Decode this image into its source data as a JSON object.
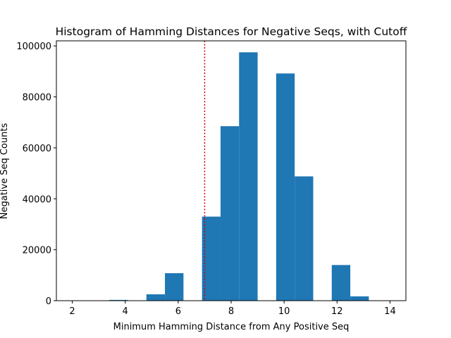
{
  "chart_data": {
    "type": "bar",
    "title": "Histogram of Hamming Distances for Negative Seqs, with Cutoff",
    "xlabel": "Minimum Hamming Distance from Any Positive Seq",
    "ylabel": "Negative Seq Counts",
    "xlim": [
      1.4,
      14.6
    ],
    "ylim": [
      0,
      102000
    ],
    "xticks": [
      2,
      4,
      6,
      8,
      10,
      12,
      14
    ],
    "yticks": [
      0,
      20000,
      40000,
      60000,
      80000,
      100000
    ],
    "bin_edges": [
      2.0,
      2.7,
      3.4,
      4.1,
      4.8,
      5.5,
      6.2,
      6.9,
      7.6,
      8.3,
      9.0,
      9.7,
      10.4,
      11.1,
      11.8,
      12.5,
      13.2,
      13.9
    ],
    "counts": [
      0,
      0,
      300,
      0,
      2500,
      10800,
      0,
      33000,
      68500,
      97500,
      0,
      89200,
      48800,
      0,
      14000,
      1700,
      0
    ],
    "bar_color": "#1f77b4",
    "cutoff": 7,
    "cutoff_color": "#cc0000",
    "cutoff_style": "dotted",
    "grid": false
  }
}
